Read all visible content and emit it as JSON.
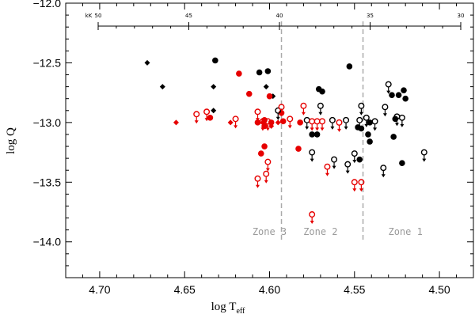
{
  "chart_data": {
    "type": "scatter",
    "xlabel": "log T",
    "xlabel_sub": "eff",
    "ylabel": "log Q",
    "xlim": [
      4.72,
      4.48
    ],
    "ylim": [
      -14.3,
      -12.0
    ],
    "x_ticks": [
      "4.70",
      "4.65",
      "4.60",
      "4.55",
      "4.50"
    ],
    "x_tick_values": [
      4.7,
      4.65,
      4.6,
      4.55,
      4.5
    ],
    "y_ticks": [
      "−12.0",
      "−12.5",
      "−13.0",
      "−13.5",
      "−14.0"
    ],
    "y_tick_values": [
      -12.0,
      -12.5,
      -13.0,
      -13.5,
      -14.0
    ],
    "top_axis": {
      "unit": "kK",
      "labels": [
        "50",
        "45",
        "40",
        "35",
        "30"
      ],
      "values": [
        50,
        45,
        40,
        35,
        30
      ]
    },
    "zones": [
      {
        "label": "Zone 3",
        "x": 4.6
      },
      {
        "label": "Zone 2",
        "x": 4.57
      },
      {
        "label": "Zone 1",
        "x": 4.52
      }
    ],
    "zone_boundaries": [
      4.593,
      4.545
    ],
    "colors": {
      "black": "#000000",
      "red": "#e60000",
      "zone": "#aaaaaa"
    },
    "series": [
      {
        "color": "black",
        "marker": "diamond",
        "upper_limit": false,
        "points": [
          [
            4.672,
            -12.5
          ],
          [
            4.663,
            -12.7
          ],
          [
            4.633,
            -12.7
          ],
          [
            4.633,
            -12.9
          ],
          [
            4.602,
            -12.7
          ],
          [
            4.598,
            -12.78
          ]
        ]
      },
      {
        "color": "red",
        "marker": "diamond",
        "upper_limit": false,
        "points": [
          [
            4.655,
            -13.0
          ],
          [
            4.623,
            -13.0
          ],
          [
            4.604,
            -13.0
          ],
          [
            4.599,
            -13.03
          ],
          [
            4.595,
            -13.0
          ]
        ]
      },
      {
        "color": "black",
        "marker": "filled_circle",
        "upper_limit": false,
        "points": [
          [
            4.632,
            -12.48
          ],
          [
            4.606,
            -12.58
          ],
          [
            4.601,
            -12.57
          ],
          [
            4.571,
            -12.72
          ],
          [
            4.569,
            -12.74
          ],
          [
            4.553,
            -12.53
          ],
          [
            4.548,
            -13.04
          ],
          [
            4.546,
            -13.05
          ],
          [
            4.542,
            -13.1
          ],
          [
            4.541,
            -13.0
          ],
          [
            4.541,
            -13.16
          ],
          [
            4.528,
            -12.77
          ],
          [
            4.526,
            -12.97
          ],
          [
            4.524,
            -12.77
          ],
          [
            4.521,
            -12.73
          ],
          [
            4.52,
            -12.8
          ],
          [
            4.527,
            -13.12
          ],
          [
            4.522,
            -13.34
          ],
          [
            4.575,
            -13.1
          ],
          [
            4.572,
            -13.1
          ],
          [
            4.547,
            -13.31
          ]
        ]
      },
      {
        "color": "red",
        "marker": "filled_circle",
        "upper_limit": false,
        "points": [
          [
            4.618,
            -12.59
          ],
          [
            4.612,
            -12.76
          ],
          [
            4.635,
            -12.96
          ],
          [
            4.607,
            -13.0
          ],
          [
            4.603,
            -13.03
          ],
          [
            4.603,
            -12.98
          ],
          [
            4.6,
            -12.78
          ],
          [
            4.599,
            -13.0
          ],
          [
            4.603,
            -13.2
          ],
          [
            4.605,
            -13.26
          ],
          [
            4.592,
            -12.99
          ],
          [
            4.582,
            -13.0
          ],
          [
            4.583,
            -13.22
          ],
          [
            4.593,
            -12.92
          ]
        ]
      },
      {
        "color": "black",
        "marker": "open_circle",
        "upper_limit": true,
        "points": [
          [
            4.595,
            -12.9
          ],
          [
            4.578,
            -12.98
          ],
          [
            4.57,
            -12.86
          ],
          [
            4.575,
            -13.25
          ],
          [
            4.563,
            -12.98
          ],
          [
            4.562,
            -13.31
          ],
          [
            4.555,
            -12.98
          ],
          [
            4.554,
            -13.35
          ],
          [
            4.55,
            -13.26
          ],
          [
            4.547,
            -12.98
          ],
          [
            4.546,
            -12.86
          ],
          [
            4.543,
            -12.96
          ],
          [
            4.538,
            -12.99
          ],
          [
            4.533,
            -13.38
          ],
          [
            4.532,
            -12.87
          ],
          [
            4.53,
            -12.68
          ],
          [
            4.525,
            -12.95
          ],
          [
            4.522,
            -12.96
          ],
          [
            4.509,
            -13.25
          ]
        ]
      },
      {
        "color": "red",
        "marker": "open_circle",
        "upper_limit": true,
        "points": [
          [
            4.637,
            -12.91
          ],
          [
            4.643,
            -12.93
          ],
          [
            4.62,
            -12.97
          ],
          [
            4.607,
            -12.91
          ],
          [
            4.604,
            -12.99
          ],
          [
            4.601,
            -12.99
          ],
          [
            4.601,
            -13.33
          ],
          [
            4.602,
            -13.43
          ],
          [
            4.607,
            -13.47
          ],
          [
            4.593,
            -12.87
          ],
          [
            4.588,
            -12.97
          ],
          [
            4.58,
            -12.86
          ],
          [
            4.575,
            -12.99
          ],
          [
            4.572,
            -12.99
          ],
          [
            4.569,
            -12.99
          ],
          [
            4.566,
            -13.37
          ],
          [
            4.559,
            -13.0
          ],
          [
            4.55,
            -13.5
          ],
          [
            4.546,
            -13.5
          ],
          [
            4.575,
            -13.77
          ]
        ]
      }
    ]
  }
}
